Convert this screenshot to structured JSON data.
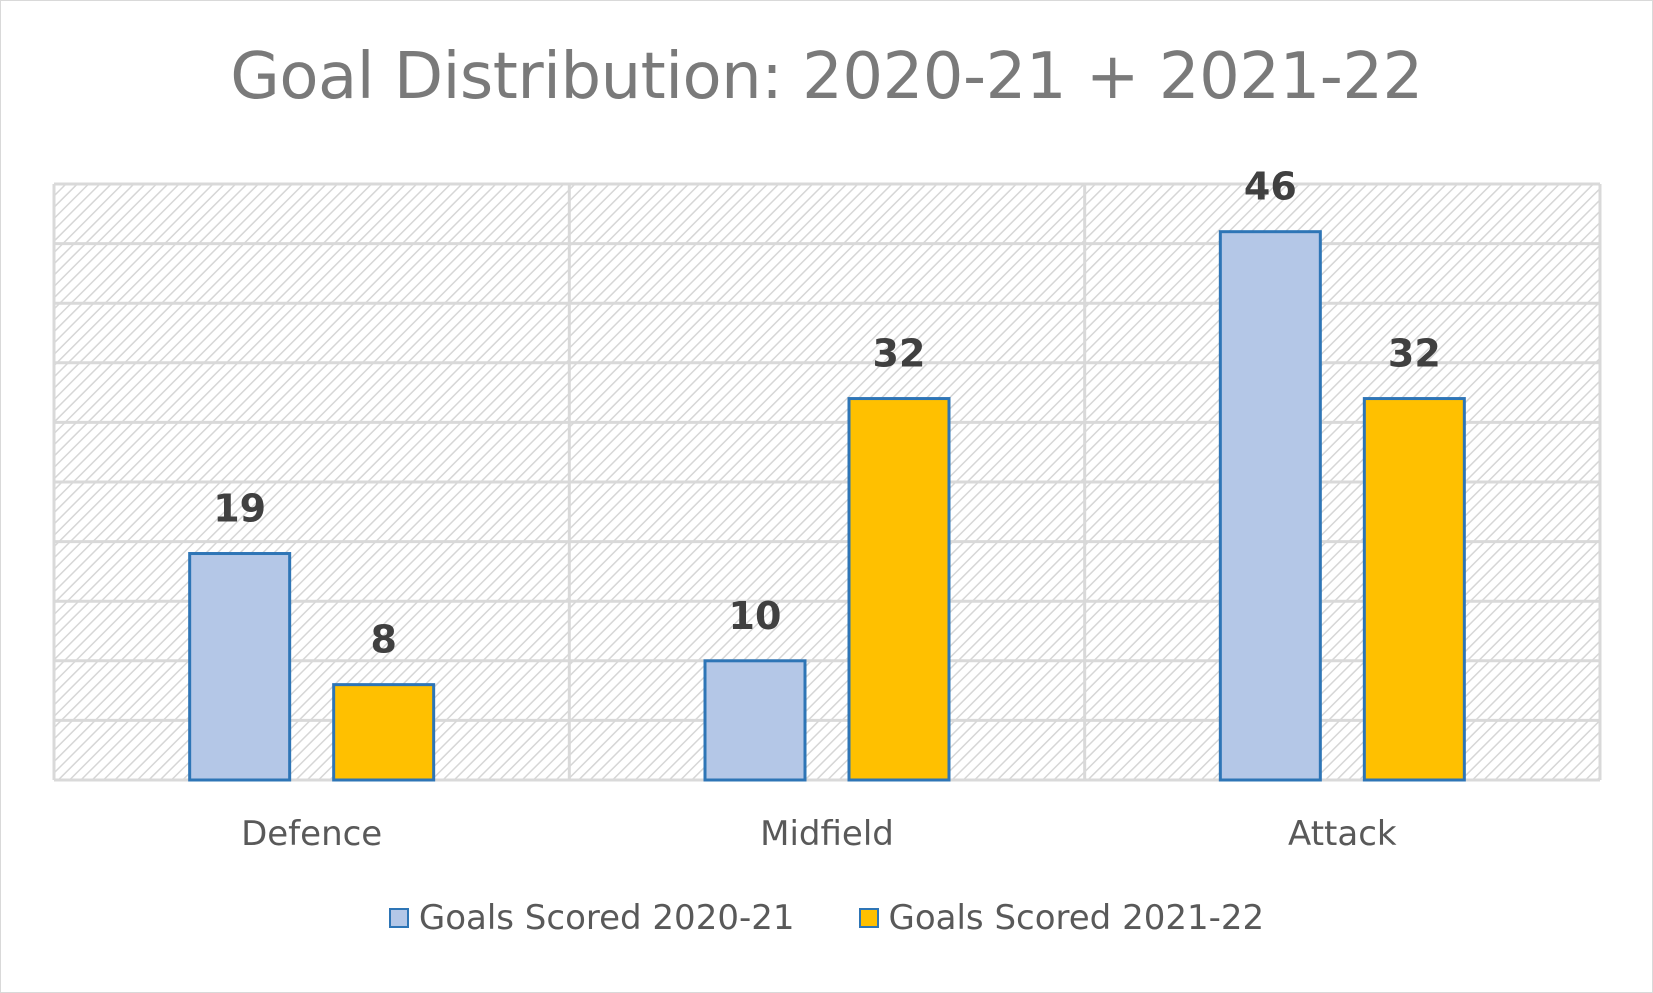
{
  "chart_data": {
    "type": "bar",
    "title": "Goal Distribution: 2020-21 + 2021-22",
    "categories": [
      "Defence",
      "Midfield",
      "Attack"
    ],
    "series": [
      {
        "name": "Goals Scored 2020-21",
        "values": [
          19,
          10,
          46
        ],
        "color": "#b4c7e7"
      },
      {
        "name": "Goals Scored 2021-22",
        "values": [
          8,
          32,
          32
        ],
        "color": "#ffc000"
      }
    ],
    "bar_outline_color": "#2e75b6",
    "ylim": [
      0,
      50
    ],
    "y_axis_labels_visible": false,
    "grid": true,
    "plot_fill": "diagonal hatch",
    "legend_position": "bottom",
    "data_labels": true
  }
}
